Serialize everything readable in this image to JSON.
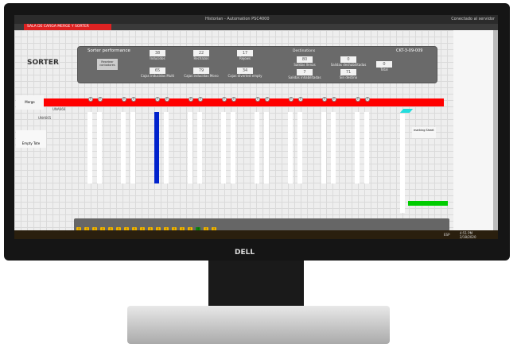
{
  "window": {
    "title": "Historian - Automation PSC4000",
    "tab": "SALA DE CARGA MERGE Y SORTER",
    "status": "Conectado al servidor"
  },
  "page_title": "SORTER",
  "performance": {
    "title": "Sorter performance",
    "button": "Resetear contadores",
    "stats": [
      {
        "value": "38",
        "label": "Inducidos"
      },
      {
        "value": "22",
        "label": "Rechazos"
      },
      {
        "value": "17",
        "label": "Rejows"
      },
      {
        "value": "65",
        "label": "Cajas inducidas Multi"
      },
      {
        "value": "79",
        "label": "Cajas inducidas Mono"
      },
      {
        "value": "34",
        "label": "Cajas diverted empty"
      }
    ]
  },
  "destinations": {
    "title": "Destinations",
    "code": "CKT-3-09-009",
    "stats": [
      {
        "value": "80",
        "label": "Salidas llenas"
      },
      {
        "value": "0",
        "label": "Salidas deshabilitadas"
      },
      {
        "value": "7",
        "label": "Salidas inhabilitadas"
      },
      {
        "value": "71",
        "label": "Sin destino"
      },
      {
        "value": "0",
        "label": "Total"
      }
    ]
  },
  "conveyor": {
    "merge_label": "Merge",
    "label1": "UNA666",
    "label2": "UNA665",
    "empty_tote": "Empty Tote",
    "marking_label": "marking Sheet",
    "chute_colors": [
      "#ffffff",
      "#ffffff",
      "#ffffff",
      "#ffffff",
      "#0022cc",
      "#ffffff",
      "#ffffff",
      "#ffffff",
      "#ffffff",
      "#ffffff",
      "#ffffff",
      "#ffffff",
      "#ffffff",
      "#ffffff",
      "#ffffff",
      "#ffffff",
      "#ffffff",
      "#ffffff"
    ],
    "accent_red": "#ff0000",
    "accent_green": "#00cc00",
    "accent_cyan": "#22dddd"
  },
  "taskbar": {
    "lang": "ESP",
    "time": "4:51 PM",
    "date": "2/18/2020"
  },
  "brand": "DELL"
}
